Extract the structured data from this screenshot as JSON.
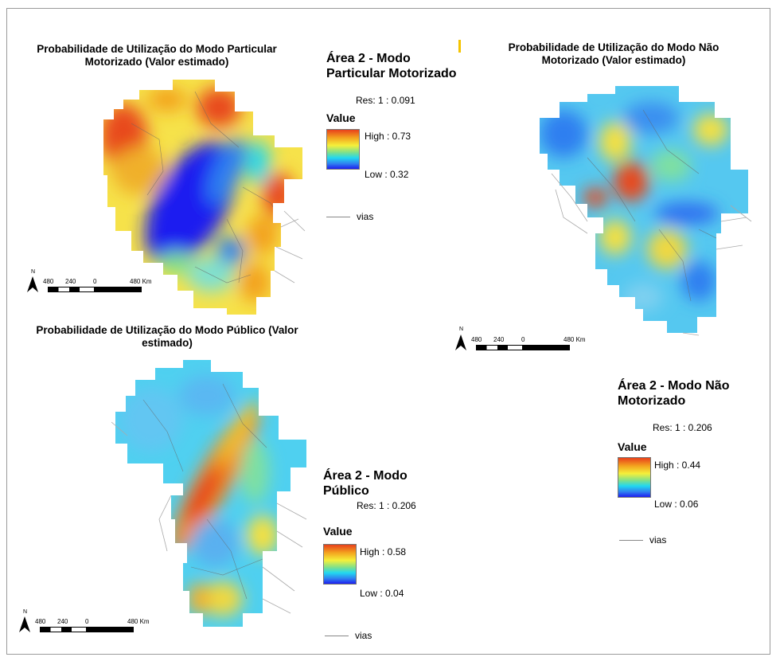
{
  "panels": [
    {
      "id": "particular",
      "title": "Probabilidade de Utilização do Modo Particular Motorizado  (Valor estimado)",
      "heading": "Área 2 - Modo Particular Motorizado",
      "res": "Res: 1 : 0.091",
      "value_label": "Value",
      "high": "High : 0.73",
      "low": "Low : 0.32",
      "vias": "vias",
      "north": "N",
      "scale_labels": [
        "480",
        "240",
        "0",
        "480 Km"
      ]
    },
    {
      "id": "nao-motorizado",
      "title": "Probabilidade de Utilização do Modo Não Motorizado  (Valor estimado)",
      "heading": "Área 2 - Modo Não Motorizado",
      "res": "Res: 1 : 0.206",
      "value_label": "Value",
      "high": "High : 0.44",
      "low": "Low : 0.06",
      "vias": "vias",
      "north": "N",
      "scale_labels": [
        "480",
        "240",
        "0",
        "480 Km"
      ]
    },
    {
      "id": "publico",
      "title": "Probabilidade de Utilização do Modo Público (Valor estimado)",
      "heading": "Área 2 - Modo Público",
      "res": "Res: 1 : 0.206",
      "value_label": "Value",
      "high": "High : 0.58",
      "low": "Low : 0.04",
      "vias": "vias",
      "north": "N",
      "scale_labels": [
        "480",
        "240",
        "0",
        "480 Km"
      ]
    }
  ],
  "colors": {
    "high": "#e8401c",
    "mid": "#f5f03a",
    "low": "#1d1df0",
    "road": "#888888"
  }
}
